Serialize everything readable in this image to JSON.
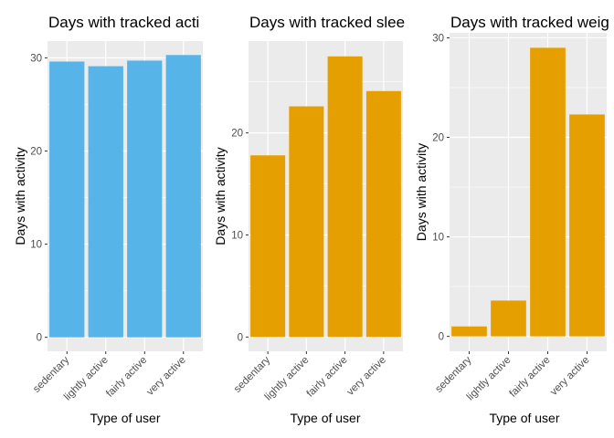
{
  "chart_data": [
    {
      "type": "bar",
      "title": "Days with tracked acti",
      "xlabel": "Type of user",
      "ylabel": "Days with activity",
      "categories": [
        "sedentary",
        "lightly active",
        "fairly active",
        "very active"
      ],
      "values": [
        29.6,
        29.1,
        29.7,
        30.3
      ],
      "ylim": [
        -1.5,
        31.8
      ],
      "yticks": [
        0,
        10,
        20,
        30
      ],
      "yticklabels": [
        "0",
        "10",
        "20",
        "30"
      ],
      "bar_color": "#56B4E9",
      "panel_background": "#EBEBEB",
      "grid": true
    },
    {
      "type": "bar",
      "title": "Days with tracked slee",
      "xlabel": "Type of user",
      "ylabel": "Days with activity",
      "categories": [
        "sedentary",
        "lightly active",
        "fairly active",
        "very active"
      ],
      "values": [
        17.8,
        22.6,
        27.5,
        24.1
      ],
      "ylim": [
        -1.4,
        29.0
      ],
      "yticks": [
        0,
        10,
        20
      ],
      "yticklabels": [
        "0",
        "10",
        "20"
      ],
      "bar_color": "#E69F00",
      "panel_background": "#EBEBEB",
      "grid": true
    },
    {
      "type": "bar",
      "title": "Days with tracked weig",
      "xlabel": "Type of user",
      "ylabel": "Days with activity",
      "categories": [
        "sedentary",
        "lightly active",
        "fairly active",
        "very active"
      ],
      "values": [
        1.0,
        3.6,
        29.0,
        22.3
      ],
      "ylim": [
        -1.5,
        30.5
      ],
      "yticks": [
        0,
        10,
        20,
        30
      ],
      "yticklabels": [
        "0",
        "10",
        "20",
        "30"
      ],
      "bar_color": "#E69F00",
      "panel_background": "#EBEBEB",
      "grid": true
    }
  ]
}
